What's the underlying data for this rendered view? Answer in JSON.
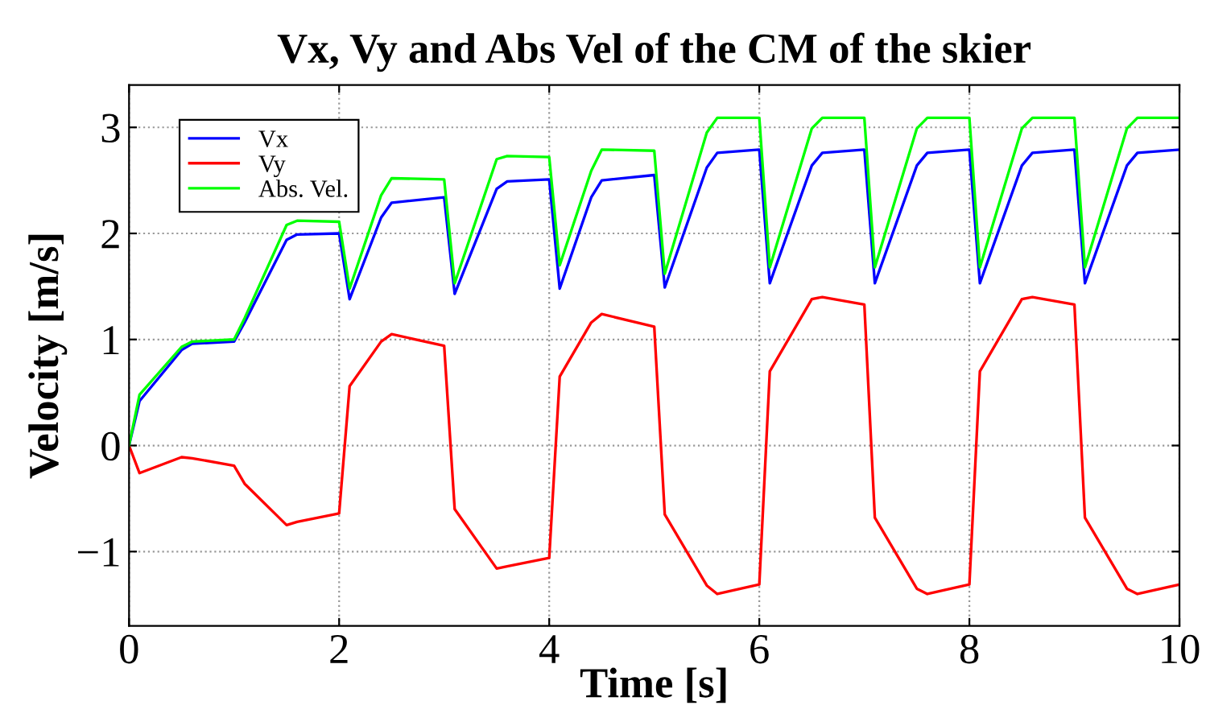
{
  "chart_data": {
    "type": "line",
    "title": "Vx, Vy and Abs Vel of the CM of the skier",
    "xlabel": "Time [s]",
    "ylabel": "Velocity [m/s]",
    "x": [
      0,
      0.1,
      0.5,
      0.6,
      1.0,
      1.1,
      1.5,
      1.6,
      2.0,
      2.1,
      2.4,
      2.5,
      3.0,
      3.1,
      3.5,
      3.6,
      4.0,
      4.1,
      4.4,
      4.5,
      5.0,
      5.1,
      5.5,
      5.6,
      6.0,
      6.1,
      6.5,
      6.6,
      7.0,
      7.1,
      7.5,
      7.6,
      8.0,
      8.1,
      8.5,
      8.6,
      9.0,
      9.1,
      9.5,
      9.6,
      10.0
    ],
    "series": [
      {
        "name": "Vx",
        "color": "#0000ff",
        "values": [
          0,
          0.42,
          0.9,
          0.96,
          0.98,
          1.16,
          1.94,
          1.99,
          2.0,
          1.38,
          2.15,
          2.29,
          2.34,
          1.43,
          2.42,
          2.49,
          2.51,
          1.48,
          2.34,
          2.5,
          2.55,
          1.49,
          2.62,
          2.76,
          2.79,
          1.53,
          2.64,
          2.76,
          2.79,
          1.53,
          2.64,
          2.76,
          2.79,
          1.53,
          2.64,
          2.76,
          2.79,
          1.53,
          2.64,
          2.76,
          2.79
        ]
      },
      {
        "name": "Vy",
        "color": "#ff0000",
        "values": [
          0,
          -0.26,
          -0.11,
          -0.12,
          -0.19,
          -0.36,
          -0.75,
          -0.72,
          -0.64,
          0.56,
          0.98,
          1.05,
          0.94,
          -0.6,
          -1.16,
          -1.14,
          -1.06,
          0.65,
          1.16,
          1.24,
          1.12,
          -0.65,
          -1.32,
          -1.4,
          -1.31,
          0.7,
          1.38,
          1.4,
          1.33,
          -0.68,
          -1.35,
          -1.4,
          -1.31,
          0.7,
          1.38,
          1.4,
          1.33,
          -0.68,
          -1.35,
          -1.4,
          -1.31
        ]
      },
      {
        "name": "Abs. Vel.",
        "color": "#00ff00",
        "values": [
          0,
          0.48,
          0.93,
          0.98,
          1.0,
          1.2,
          2.08,
          2.12,
          2.11,
          1.48,
          2.36,
          2.52,
          2.51,
          1.53,
          2.7,
          2.73,
          2.72,
          1.7,
          2.59,
          2.79,
          2.78,
          1.62,
          2.95,
          3.09,
          3.09,
          1.68,
          2.99,
          3.09,
          3.09,
          1.68,
          2.99,
          3.09,
          3.09,
          1.68,
          2.99,
          3.09,
          3.09,
          1.68,
          2.99,
          3.09,
          3.09
        ]
      }
    ],
    "xlim": [
      0,
      10
    ],
    "xticks": [
      0,
      2,
      4,
      6,
      8,
      10
    ],
    "ylim": [
      -1.7,
      3.4
    ],
    "yticks": [
      {
        "value": -1,
        "label": "−1"
      },
      0,
      1,
      2,
      3
    ],
    "grid": true,
    "legend": "top left",
    "line_style": "solid"
  }
}
